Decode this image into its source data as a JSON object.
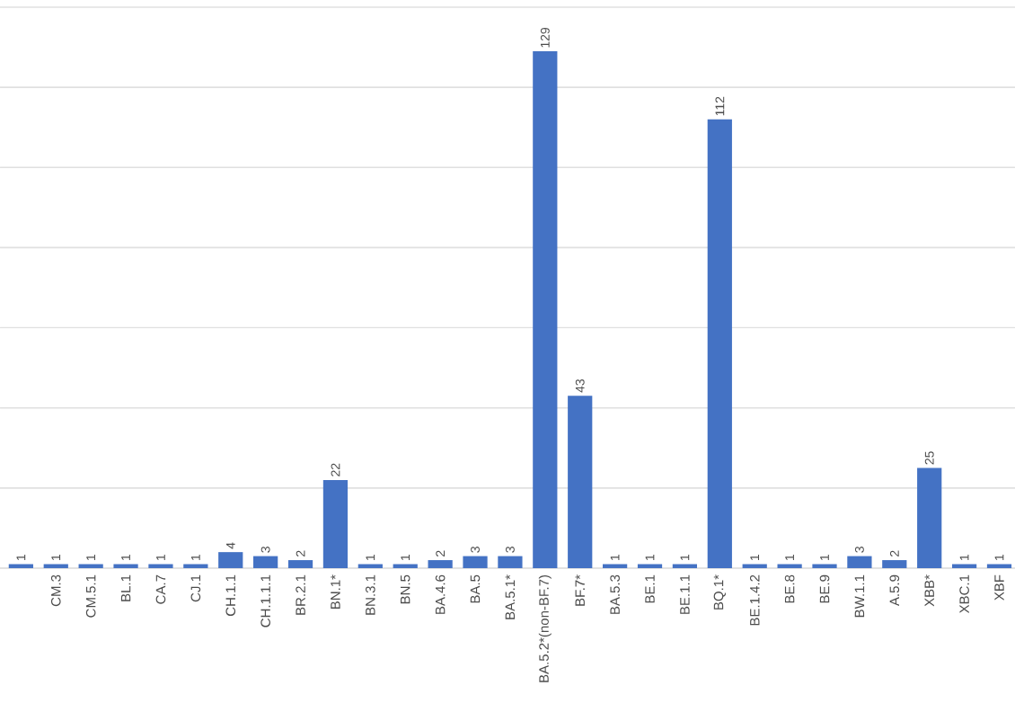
{
  "chart_data": {
    "type": "bar",
    "categories": [
      null,
      "CM.3",
      "CM.5.1",
      "BL.1",
      "CA.7",
      "CJ.1",
      "CH.1.1",
      "CH.1.1.1",
      "BR.2.1",
      "BN.1*",
      "BN.3.1",
      "BN.5",
      "BA.4.6",
      "BA.5",
      "BA.5.1*",
      "BA.5.2*(non-BF.7)",
      "BF.7*",
      "BA.5.3",
      "BE.1",
      "BE.1.1",
      "BQ.1*",
      "BE.1.4.2",
      "BE.8",
      "BE.9",
      "BW.1.1",
      "A.5.9",
      "XBB*",
      "XBC.1",
      "XBF"
    ],
    "values": [
      1,
      1,
      1,
      1,
      1,
      1,
      4,
      3,
      2,
      22,
      1,
      1,
      2,
      3,
      3,
      129,
      43,
      1,
      1,
      1,
      112,
      1,
      1,
      1,
      3,
      2,
      25,
      1,
      1
    ],
    "color": "#4472c4",
    "data_labels": true,
    "grid": "y",
    "tick_labels": "x",
    "ylim": [
      0,
      140
    ],
    "yticks": [
      {
        "value": 0,
        "label": null
      },
      {
        "value": 20,
        "label": null
      },
      {
        "value": 40,
        "label": null
      },
      {
        "value": 60,
        "label": null
      },
      {
        "value": 80,
        "label": null
      },
      {
        "value": 100,
        "label": null
      },
      {
        "value": 120,
        "label": null
      },
      {
        "value": 140,
        "label": null
      }
    ]
  }
}
